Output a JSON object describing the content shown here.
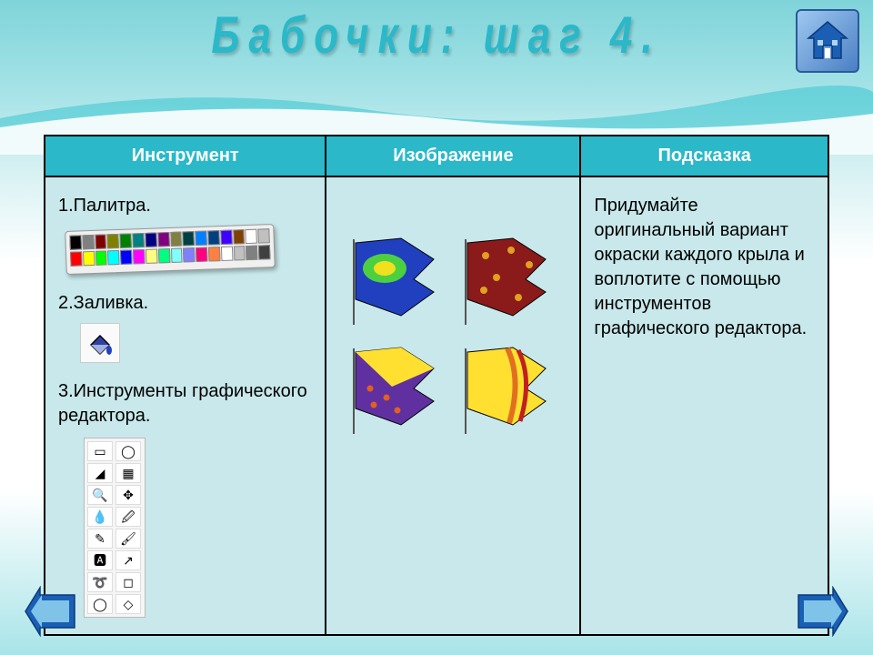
{
  "title": "Бабочки: шаг 4.",
  "table": {
    "headers": {
      "tool": "Инструмент",
      "image": "Изображение",
      "hint": "Подсказка"
    },
    "header_bg": "#2bb8c9",
    "header_color": "#ffffff",
    "cell_bg": "#c8e8eb",
    "tools": {
      "item1": "1.Палитра.",
      "item2": "2.Заливка.",
      "item3": "3.Инструменты графического редактора."
    },
    "hint_text": "Придумайте оригинальный вариант окраски каждого крыла и воплотите с помощью инструментов графического редактора."
  },
  "palette_colors_row1": [
    "#000000",
    "#808080",
    "#800000",
    "#808000",
    "#008000",
    "#008080",
    "#000080",
    "#800080",
    "#808040",
    "#004040",
    "#0080ff",
    "#004080",
    "#4000ff",
    "#804000",
    "#ffffff",
    "#c0c0c0"
  ],
  "palette_colors_row2": [
    "#ff0000",
    "#ffff00",
    "#00ff00",
    "#00ffff",
    "#0000ff",
    "#ff00ff",
    "#ffff80",
    "#00ff80",
    "#80ffff",
    "#8080ff",
    "#ff0080",
    "#ff8040",
    "#ffffff",
    "#c0c0c0",
    "#808080",
    "#404040"
  ],
  "wings": {
    "w1": {
      "fill": "#2040c0",
      "inner1": "#4dd040",
      "inner2": "#f0e020"
    },
    "w2": {
      "fill": "#8b1a1a",
      "dots": "#e0a020"
    },
    "w3": {
      "fill": "#6030a0",
      "accent": "#ffe030",
      "dots": "#e06020"
    },
    "w4": {
      "fill": "#ffe030",
      "stripe1": "#e07020",
      "stripe2": "#c02020"
    }
  },
  "nav": {
    "home_fill": "#1a5fb4",
    "arrow_outer": "#1a5fb4",
    "arrow_inner": "#7fc4e8"
  },
  "toolbox_icons": [
    "▭",
    "◯",
    "◢",
    "▦",
    "🔍",
    "✥",
    "💧",
    "🖉",
    "✎",
    "🖌",
    "🅰",
    "↗",
    "➰",
    "◻",
    "◯",
    "◇"
  ]
}
